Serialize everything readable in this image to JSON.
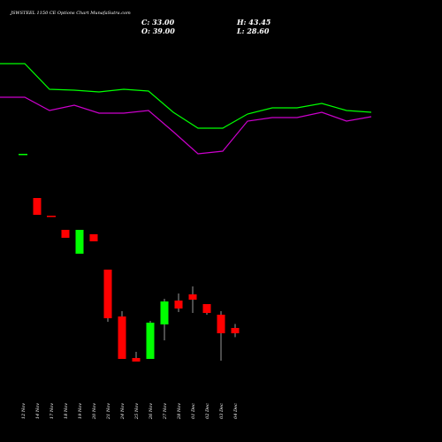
{
  "header": {
    "title": "JSWSTEEL 1150 CE Options Chart MunafaSutra.com",
    "close": "C: 33.00",
    "open": "O: 39.00",
    "high": "H: 43.45",
    "low": "L: 28.60"
  },
  "chart_data": {
    "type": "candlestick",
    "title": "JSWSTEEL 1150 CE Options Chart MunafaSutra.com",
    "categories": [
      "12 Nov",
      "14 Nov",
      "17 Nov",
      "18 Nov",
      "19 Nov",
      "20 Nov",
      "21 Nov",
      "24 Nov",
      "25 Nov",
      "26 Nov",
      "27 Nov",
      "28 Nov",
      "01 Dec",
      "02 Dec",
      "03 Dec",
      "04 Dec"
    ],
    "candles": [
      {
        "date": "12 Nov",
        "open": 236,
        "close": 236,
        "high": 236,
        "low": 236,
        "color": "green"
      },
      {
        "date": "14 Nov",
        "open": 186,
        "close": 167,
        "high": 186,
        "low": 167,
        "color": "red"
      },
      {
        "date": "17 Nov",
        "open": 166,
        "close": 166,
        "high": 166,
        "low": 166,
        "color": "red"
      },
      {
        "date": "18 Nov",
        "open": 150,
        "close": 141,
        "high": 150,
        "low": 141,
        "color": "red"
      },
      {
        "date": "19 Nov",
        "open": 123,
        "close": 150,
        "high": 150,
        "low": 123,
        "color": "green"
      },
      {
        "date": "20 Nov",
        "open": 145,
        "close": 137,
        "high": 145,
        "low": 137,
        "color": "red"
      },
      {
        "date": "21 Nov",
        "open": 105,
        "close": 50,
        "high": 105,
        "low": 46,
        "color": "red"
      },
      {
        "date": "24 Nov",
        "open": 52,
        "close": 4,
        "high": 58,
        "low": 4,
        "color": "red"
      },
      {
        "date": "25 Nov",
        "open": 5,
        "close": 1,
        "high": 12,
        "low": 1,
        "color": "red"
      },
      {
        "date": "26 Nov",
        "open": 4,
        "close": 45,
        "high": 47,
        "low": 4,
        "color": "green"
      },
      {
        "date": "27 Nov",
        "open": 43,
        "close": 69,
        "high": 72,
        "low": 25,
        "color": "green"
      },
      {
        "date": "28 Nov",
        "open": 70,
        "close": 61,
        "high": 78,
        "low": 57,
        "color": "red"
      },
      {
        "date": "01 Dec",
        "open": 77,
        "close": 71,
        "high": 86,
        "low": 56,
        "color": "red"
      },
      {
        "date": "02 Dec",
        "open": 66,
        "close": 56,
        "high": 66,
        "low": 54,
        "color": "red"
      },
      {
        "date": "03 Dec",
        "open": 54,
        "close": 33,
        "high": 58,
        "low": 2,
        "color": "red"
      },
      {
        "date": "04 Dec",
        "open": 39,
        "close": 33,
        "high": 43.45,
        "low": 28.6,
        "color": "red"
      }
    ],
    "series": [
      {
        "color": "#00ff00",
        "values": [
          338,
          338,
          309,
          308,
          306,
          309,
          307,
          283,
          265,
          265,
          281,
          288,
          288,
          293,
          285,
          283
        ]
      },
      {
        "color": "#cc00cc",
        "values": [
          300,
          300,
          285,
          291,
          282,
          282,
          285,
          261,
          236,
          239,
          273,
          277,
          277,
          283,
          273,
          278
        ]
      }
    ],
    "colors": {
      "up": "#00ff00",
      "down": "#ff0000",
      "wick": "#ffffff",
      "background": "#000000"
    }
  }
}
